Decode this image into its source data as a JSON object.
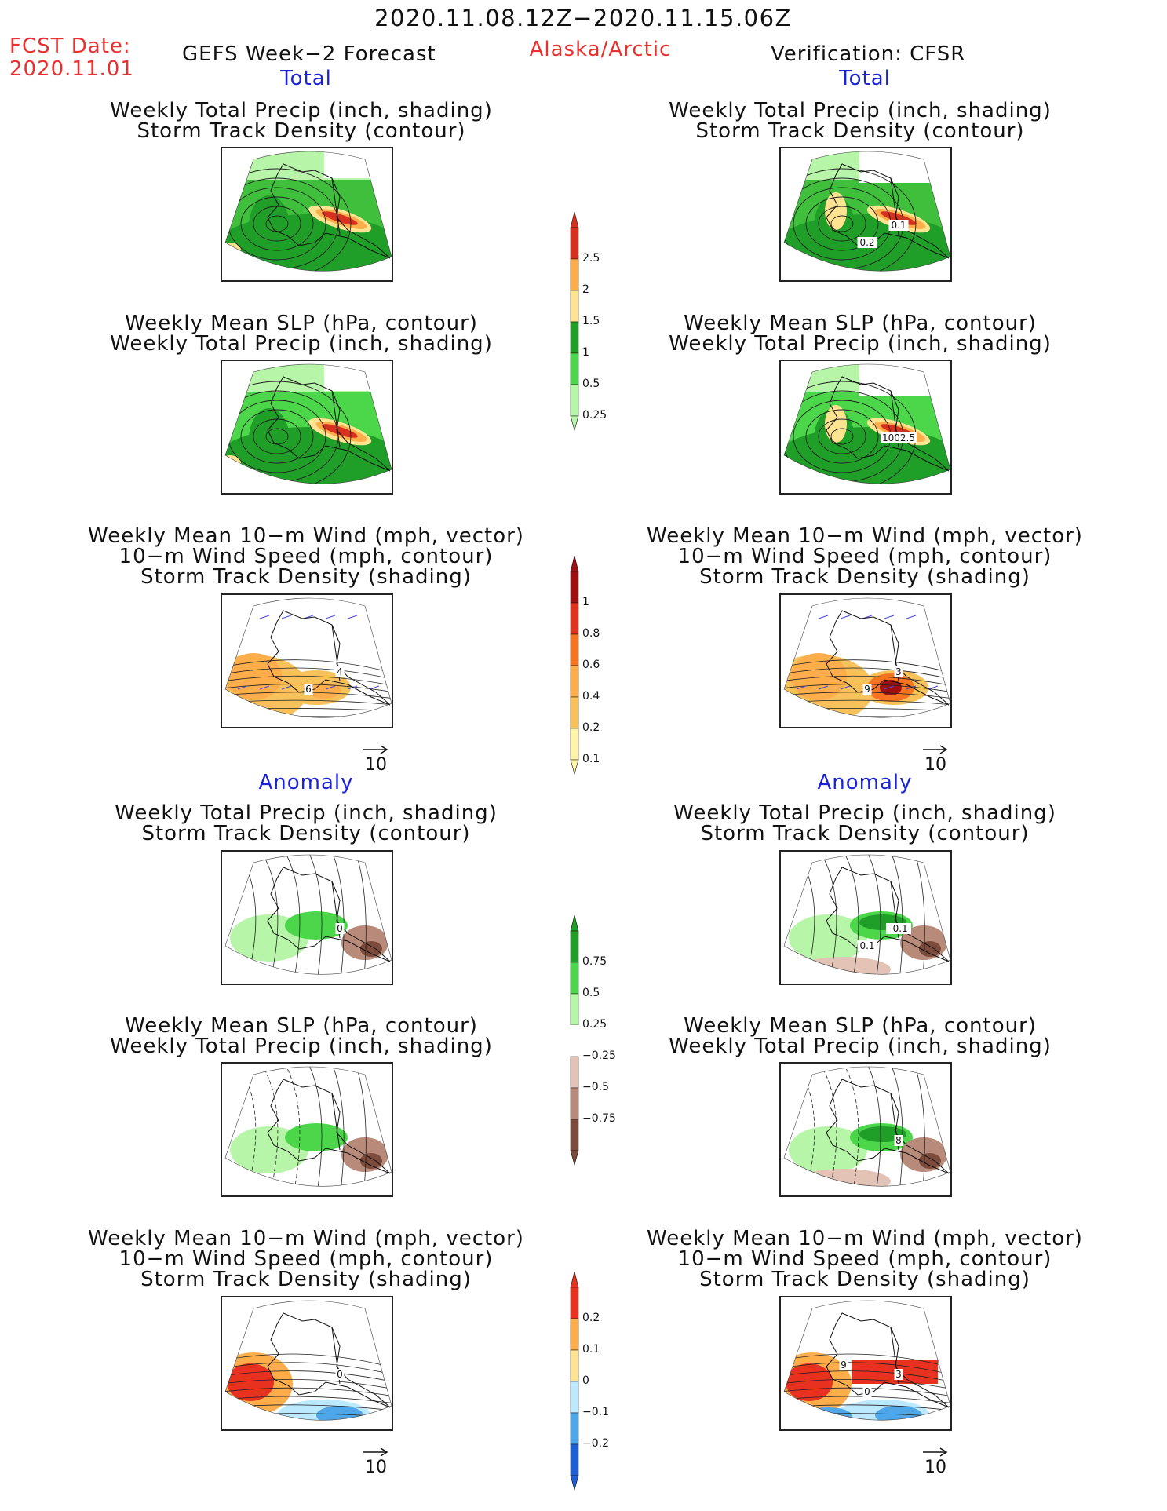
{
  "header": {
    "date_range": "2020.11.08.12Z−2020.11.15.06Z",
    "fcst_date_label": "FCST Date:",
    "fcst_date_value": "2020.11.01",
    "forecast_title": "GEFS Week−2 Forecast",
    "region": "Alaska/Arctic",
    "verification": "Verification: CFSR"
  },
  "sections": {
    "total": "Total",
    "anomaly": "Anomaly"
  },
  "panel_titles": {
    "precip_storm": [
      "Weekly Total Precip (inch, shading)",
      "Storm Track Density (contour)"
    ],
    "slp_precip": [
      "Weekly Mean SLP (hPa, contour)",
      "Weekly Total Precip (inch, shading)"
    ],
    "wind_storm": [
      "Weekly Mean 10−m Wind (mph, vector)",
      "10−m Wind Speed (mph, contour)",
      "Storm Track Density (shading)"
    ]
  },
  "contour_labels": {
    "v_total_precip": [
      "0.1",
      "0.2"
    ],
    "v_total_slp": [
      "1002.5"
    ],
    "f_total_wind": [
      "4",
      "6"
    ],
    "v_total_wind": [
      "3",
      "9"
    ],
    "f_anom_precip": [
      "0"
    ],
    "v_anom_precip": [
      "-0.1",
      "0.1"
    ],
    "v_anom_slp": [
      "8"
    ],
    "f_anom_wind": [
      "0"
    ],
    "v_anom_wind": [
      "3",
      "0",
      "9"
    ]
  },
  "vector_reference": "10",
  "colorbars": [
    {
      "name": "precip-total",
      "labels": [
        "2.5",
        "2",
        "1.5",
        "1",
        "0.5",
        "0.25"
      ],
      "colors": [
        "#d7301f",
        "#fdae4b",
        "#fee391",
        "#1f9e28",
        "#4cd64a",
        "#b7f5a8"
      ]
    },
    {
      "name": "storm-total",
      "labels": [
        "1",
        "0.8",
        "0.6",
        "0.4",
        "0.2",
        "0.1"
      ],
      "colors": [
        "#9e1010",
        "#e0321f",
        "#f6731f",
        "#fdae4b",
        "#f8c15a",
        "#fff4a8"
      ]
    },
    {
      "name": "precip-anomaly",
      "labels": [
        "0.75",
        "0.5",
        "0.25",
        "−0.25",
        "−0.5",
        "−0.75"
      ],
      "colors": [
        "#1f9e28",
        "#4cd64a",
        "#b7f5a8",
        "#ffffff",
        "#e3c3b6",
        "#b88a7a",
        "#7d4b3c"
      ]
    },
    {
      "name": "storm-anomaly",
      "labels": [
        "0.2",
        "0.1",
        "0",
        "−0.1",
        "−0.2"
      ],
      "colors": [
        "#e8321f",
        "#fdae4b",
        "#fee391",
        "#bde9ff",
        "#4fa6e8",
        "#1e5fd4"
      ]
    }
  ]
}
